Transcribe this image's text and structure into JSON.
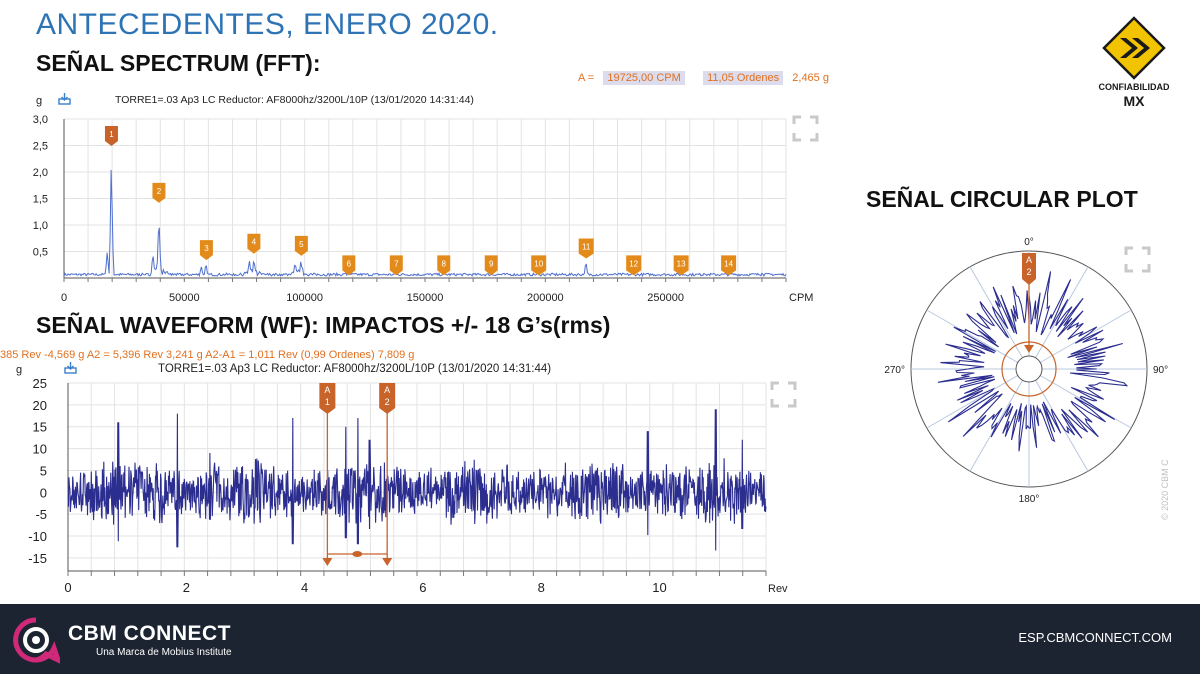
{
  "slide": {
    "title": "ANTECEDENTES, ENERO 2020.",
    "copyright": "© 2020 CBM C"
  },
  "logo": {
    "text_top": "CONFIABILIDAD",
    "text_bottom": "MX"
  },
  "spectrum": {
    "heading": "SEÑAL SPECTRUM (FFT):",
    "cursor": {
      "prefix": "A  =",
      "cpm": "19725,00 CPM",
      "orders": "11,05 Ordenes",
      "amp": "2,465 g"
    },
    "unit_label": "g",
    "trace_title": "TORRE1=.03  Ap3 LC Reductor: AF8000hz/3200L/10P (13/01/2020 14:31:44)"
  },
  "waveform": {
    "heading": "SEÑAL WAVEFORM (WF): IMPACTOS +/- 18 G’s(rms)",
    "cursor_line": "385 Rev  -4,569 g      A2  =  5,396 Rev  3,241 g      A2-A1  =  1,011 Rev  (0,99 Ordenes)   7,809 g",
    "unit_label": "g",
    "trace_title": "TORRE1=.03  Ap3 LC Reductor: AF8000hz/3200L/10P (13/01/2020 14:31:44)"
  },
  "circular": {
    "heading": "SEÑAL CIRCULAR PLOT"
  },
  "footer": {
    "brand": "CBM CONNECT",
    "tagline": "Una Marca de Mobius Institute",
    "url": "ESP.CBMCONNECT.COM"
  },
  "colors": {
    "title_blue": "#2e74b5",
    "trace": "#2b2d8f",
    "spectrum_trace": "#4d6fd0",
    "marker": "#e38b1a",
    "cursor_marker": "#c8632a",
    "grid": "#e3e3e3",
    "footer_bg": "#1b2430",
    "brand_magenta": "#d0297a"
  },
  "chart_data": [
    {
      "type": "line",
      "name": "spectrum",
      "xlabel": "CPM",
      "ylabel": "g",
      "xlim": [
        0,
        300000
      ],
      "ylim": [
        0,
        3.0
      ],
      "yticks": [
        "3,0",
        "2,5",
        "2,0",
        "1,5",
        "1,0",
        "0,5"
      ],
      "ytick_values": [
        3.0,
        2.5,
        2.0,
        1.5,
        1.0,
        0.5
      ],
      "xticks": [
        "0",
        "50000",
        "100000",
        "150000",
        "200000",
        "250000"
      ],
      "xtick_values": [
        0,
        50000,
        100000,
        150000,
        200000,
        250000
      ],
      "peaks": [
        {
          "x": 19725,
          "y": 2.465
        },
        {
          "x": 39450,
          "y": 1.38
        },
        {
          "x": 18000,
          "y": 0.6
        },
        {
          "x": 37000,
          "y": 0.55
        },
        {
          "x": 57000,
          "y": 0.28
        },
        {
          "x": 59000,
          "y": 0.3
        },
        {
          "x": 77000,
          "y": 0.4
        },
        {
          "x": 79000,
          "y": 0.42
        },
        {
          "x": 96000,
          "y": 0.32
        },
        {
          "x": 98500,
          "y": 0.38
        },
        {
          "x": 117000,
          "y": 0.12
        },
        {
          "x": 138000,
          "y": 0.1
        },
        {
          "x": 216900,
          "y": 0.33
        },
        {
          "x": 266000,
          "y": 0.13
        },
        {
          "x": 290000,
          "y": 0.1
        }
      ],
      "grid": true,
      "harmonic_markers": [
        {
          "label": "1",
          "x": 19725,
          "y": 2.465
        },
        {
          "label": "2",
          "x": 39450,
          "y": 1.38
        },
        {
          "label": "3",
          "x": 59175,
          "y": 0.3
        },
        {
          "label": "4",
          "x": 78900,
          "y": 0.42
        },
        {
          "label": "5",
          "x": 98625,
          "y": 0.38
        },
        {
          "label": "6",
          "x": 118350,
          "y": 0.05
        },
        {
          "label": "7",
          "x": 138075,
          "y": 0.05
        },
        {
          "label": "8",
          "x": 157800,
          "y": 0.05
        },
        {
          "label": "9",
          "x": 177525,
          "y": 0.05
        },
        {
          "label": "10",
          "x": 197250,
          "y": 0.05
        },
        {
          "label": "11",
          "x": 216975,
          "y": 0.33
        },
        {
          "label": "12",
          "x": 236700,
          "y": 0.05
        },
        {
          "label": "13",
          "x": 256425,
          "y": 0.05
        },
        {
          "label": "14",
          "x": 276150,
          "y": 0.05
        }
      ]
    },
    {
      "type": "line",
      "name": "waveform",
      "xlabel": "Rev",
      "ylabel": "g",
      "xlim": [
        0,
        11.8
      ],
      "ylim": [
        -18,
        25
      ],
      "yticks": [
        "25",
        "20",
        "15",
        "10",
        "5",
        "0",
        "-5",
        "-10",
        "-15"
      ],
      "ytick_values": [
        25,
        20,
        15,
        10,
        5,
        0,
        -5,
        -10,
        -15
      ],
      "xticks": [
        "0",
        "2",
        "4",
        "6",
        "8",
        "10"
      ],
      "xtick_values": [
        0,
        2,
        4,
        6,
        8,
        10
      ],
      "impacts": [
        {
          "x": 0.85,
          "y": 16
        },
        {
          "x": 1.85,
          "y": 18
        },
        {
          "x": 2.4,
          "y": 9
        },
        {
          "x": 3.8,
          "y": 17
        },
        {
          "x": 4.7,
          "y": 15
        },
        {
          "x": 4.9,
          "y": 17
        },
        {
          "x": 5.1,
          "y": 12
        },
        {
          "x": 9.8,
          "y": 14
        },
        {
          "x": 10.95,
          "y": 19
        },
        {
          "x": 11.4,
          "y": 12
        }
      ],
      "rms": 6,
      "grid": true,
      "cursors": [
        {
          "label": "A1",
          "x": 4.385,
          "y": -4.569
        },
        {
          "label": "A2",
          "x": 5.396,
          "y": 3.241
        }
      ]
    },
    {
      "type": "scatter",
      "name": "circular_plot",
      "angle_labels": [
        "0°",
        "90°",
        "180°",
        "270°"
      ],
      "marker": "A2",
      "marker_angle_deg": 0
    }
  ]
}
